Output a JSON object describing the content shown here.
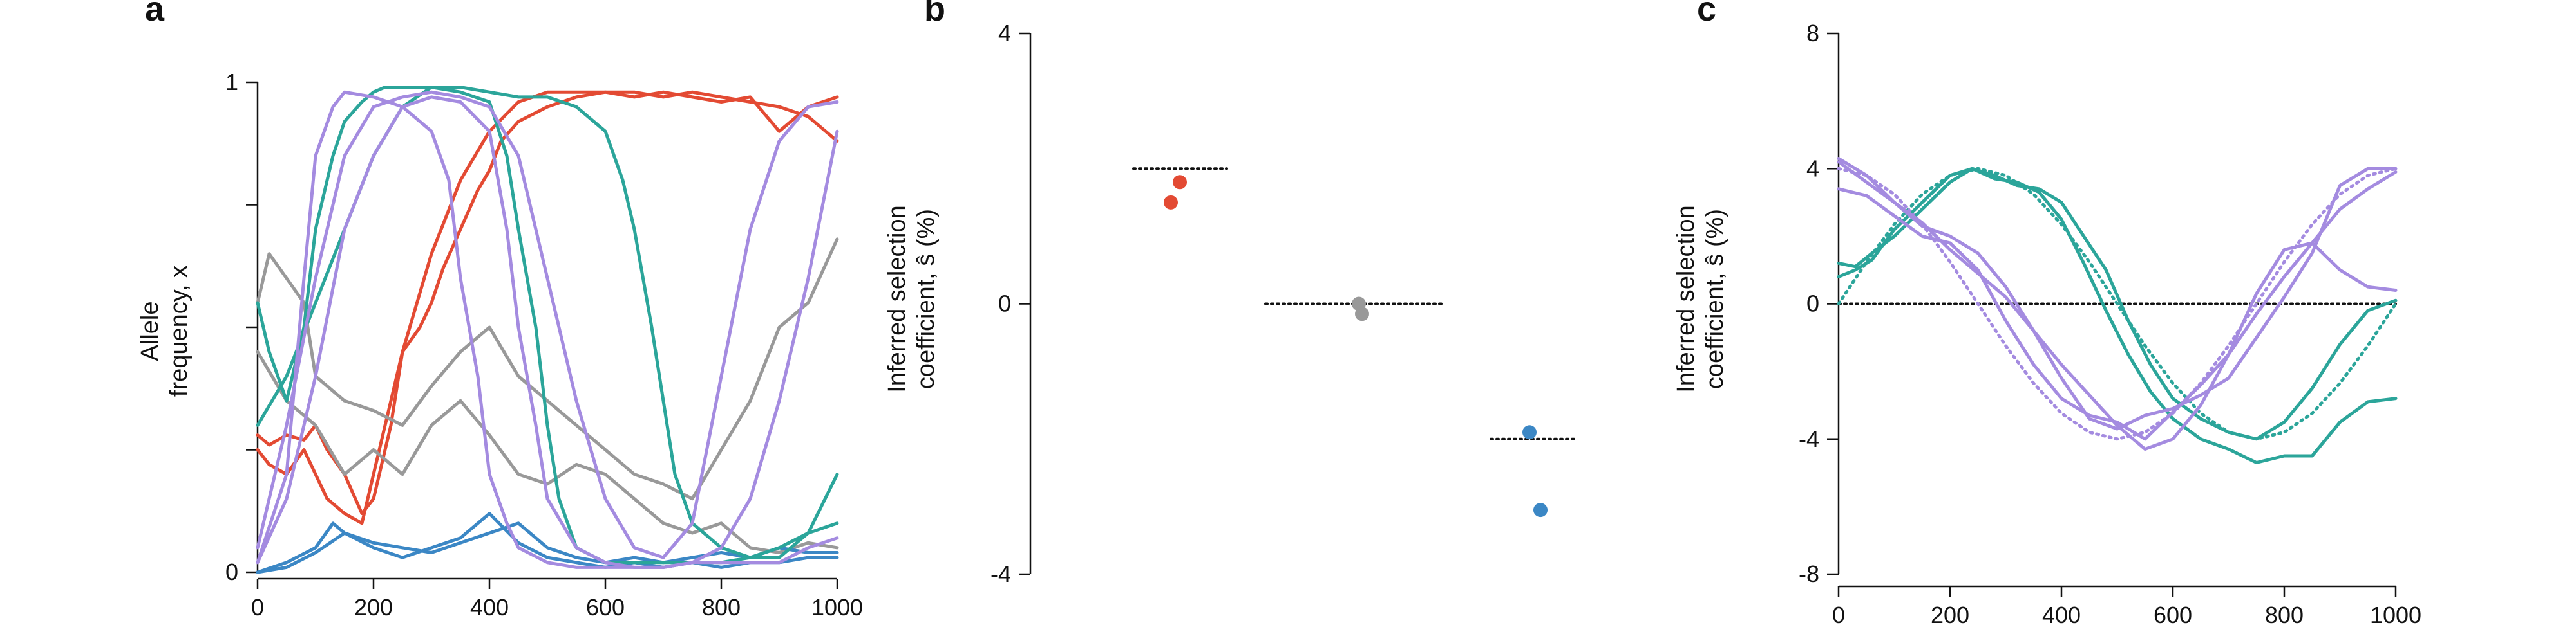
{
  "colors": {
    "red": "#e34a33",
    "gray": "#999999",
    "blue": "#3b87c5",
    "teal": "#2ba59a",
    "purple": "#a48be0",
    "axis": "#111111"
  },
  "chart_data": [
    {
      "panel": "a",
      "type": "line",
      "ylabel_lines": [
        "Allele",
        "frequency, x"
      ],
      "xlim": [
        0,
        1000
      ],
      "ylim": [
        0,
        1
      ],
      "xticks": [
        0,
        200,
        400,
        600,
        800,
        1000
      ],
      "yticks": [
        0,
        0.25,
        0.5,
        0.75,
        1
      ],
      "ytick_labels": [
        "0",
        "",
        "",
        "",
        "1"
      ],
      "series": [
        {
          "color": "red",
          "x": [
            0,
            20,
            50,
            80,
            100,
            120,
            150,
            180,
            200,
            230,
            250,
            280,
            300,
            320,
            350,
            380,
            400,
            420,
            450,
            500,
            550,
            600,
            650,
            700,
            750,
            800,
            850,
            900,
            950,
            1000
          ],
          "y": [
            0.28,
            0.26,
            0.28,
            0.27,
            0.3,
            0.25,
            0.2,
            0.12,
            0.15,
            0.3,
            0.45,
            0.5,
            0.55,
            0.62,
            0.7,
            0.78,
            0.82,
            0.88,
            0.92,
            0.95,
            0.97,
            0.98,
            0.98,
            0.97,
            0.98,
            0.97,
            0.96,
            0.95,
            0.93,
            0.88
          ]
        },
        {
          "color": "red",
          "x": [
            0,
            20,
            50,
            80,
            100,
            120,
            150,
            180,
            200,
            250,
            300,
            350,
            400,
            450,
            500,
            550,
            600,
            650,
            700,
            750,
            800,
            850,
            900,
            950,
            1000
          ],
          "y": [
            0.25,
            0.22,
            0.2,
            0.25,
            0.2,
            0.15,
            0.12,
            0.1,
            0.2,
            0.45,
            0.65,
            0.8,
            0.9,
            0.96,
            0.98,
            0.98,
            0.98,
            0.97,
            0.98,
            0.97,
            0.96,
            0.97,
            0.9,
            0.95,
            0.97
          ]
        },
        {
          "color": "gray",
          "x": [
            0,
            20,
            50,
            80,
            100,
            150,
            200,
            250,
            300,
            350,
            400,
            450,
            500,
            550,
            600,
            650,
            700,
            750,
            800,
            850,
            900,
            950,
            1000
          ],
          "y": [
            0.55,
            0.65,
            0.6,
            0.55,
            0.4,
            0.35,
            0.33,
            0.3,
            0.38,
            0.45,
            0.5,
            0.4,
            0.35,
            0.3,
            0.25,
            0.2,
            0.18,
            0.15,
            0.25,
            0.35,
            0.5,
            0.55,
            0.68
          ]
        },
        {
          "color": "gray",
          "x": [
            0,
            50,
            100,
            150,
            200,
            250,
            300,
            350,
            400,
            450,
            500,
            550,
            600,
            650,
            700,
            750,
            800,
            850,
            900,
            950,
            1000
          ],
          "y": [
            0.45,
            0.35,
            0.3,
            0.2,
            0.25,
            0.2,
            0.3,
            0.35,
            0.28,
            0.2,
            0.18,
            0.22,
            0.2,
            0.15,
            0.1,
            0.08,
            0.1,
            0.05,
            0.04,
            0.06,
            0.05
          ]
        },
        {
          "color": "blue",
          "x": [
            0,
            50,
            100,
            130,
            150,
            200,
            250,
            300,
            350,
            400,
            450,
            500,
            550,
            600,
            650,
            700,
            750,
            800,
            850,
            900,
            950,
            1000
          ],
          "y": [
            0,
            0.02,
            0.05,
            0.1,
            0.08,
            0.06,
            0.05,
            0.04,
            0.06,
            0.08,
            0.1,
            0.05,
            0.03,
            0.02,
            0.03,
            0.02,
            0.03,
            0.04,
            0.03,
            0.05,
            0.04,
            0.04
          ]
        },
        {
          "color": "blue",
          "x": [
            0,
            50,
            100,
            150,
            200,
            250,
            300,
            350,
            400,
            450,
            500,
            550,
            600,
            650,
            700,
            750,
            800,
            850,
            900,
            950,
            1000
          ],
          "y": [
            0,
            0.01,
            0.04,
            0.08,
            0.05,
            0.03,
            0.05,
            0.07,
            0.12,
            0.06,
            0.03,
            0.02,
            0.01,
            0.02,
            0.01,
            0.02,
            0.01,
            0.02,
            0.02,
            0.03,
            0.03
          ]
        },
        {
          "color": "teal",
          "x": [
            0,
            20,
            50,
            80,
            100,
            130,
            150,
            180,
            200,
            220,
            250,
            300,
            350,
            400,
            430,
            450,
            480,
            500,
            520,
            550,
            600,
            650,
            700,
            750,
            800,
            850,
            900,
            950,
            1000
          ],
          "y": [
            0.55,
            0.45,
            0.35,
            0.5,
            0.7,
            0.85,
            0.92,
            0.96,
            0.98,
            0.99,
            0.99,
            0.99,
            0.98,
            0.96,
            0.85,
            0.7,
            0.5,
            0.3,
            0.15,
            0.05,
            0.02,
            0.02,
            0.02,
            0.02,
            0.02,
            0.03,
            0.05,
            0.08,
            0.1
          ]
        },
        {
          "color": "teal",
          "x": [
            0,
            50,
            100,
            150,
            200,
            250,
            300,
            350,
            400,
            450,
            500,
            550,
            600,
            630,
            650,
            680,
            700,
            720,
            750,
            800,
            850,
            900,
            950,
            1000
          ],
          "y": [
            0.3,
            0.4,
            0.55,
            0.7,
            0.85,
            0.95,
            0.99,
            0.99,
            0.98,
            0.97,
            0.97,
            0.95,
            0.9,
            0.8,
            0.7,
            0.5,
            0.35,
            0.2,
            0.1,
            0.05,
            0.03,
            0.03,
            0.08,
            0.2
          ]
        },
        {
          "color": "purple",
          "x": [
            0,
            50,
            80,
            100,
            130,
            150,
            200,
            250,
            300,
            330,
            350,
            380,
            400,
            430,
            450,
            500,
            550,
            600,
            650,
            700,
            750,
            800,
            850,
            900,
            950,
            1000
          ],
          "y": [
            0.02,
            0.2,
            0.6,
            0.85,
            0.95,
            0.98,
            0.97,
            0.95,
            0.9,
            0.8,
            0.6,
            0.4,
            0.2,
            0.1,
            0.05,
            0.02,
            0.01,
            0.01,
            0.01,
            0.01,
            0.02,
            0.02,
            0.02,
            0.02,
            0.05,
            0.07
          ]
        },
        {
          "color": "purple",
          "x": [
            0,
            50,
            100,
            150,
            200,
            250,
            300,
            350,
            400,
            430,
            450,
            480,
            500,
            550,
            600,
            650,
            700,
            750,
            800,
            850,
            900,
            950,
            980,
            1000
          ],
          "y": [
            0.02,
            0.15,
            0.4,
            0.7,
            0.85,
            0.95,
            0.97,
            0.96,
            0.9,
            0.7,
            0.5,
            0.3,
            0.15,
            0.05,
            0.02,
            0.01,
            0.01,
            0.02,
            0.05,
            0.15,
            0.35,
            0.6,
            0.78,
            0.9
          ]
        },
        {
          "color": "purple",
          "x": [
            0,
            50,
            100,
            150,
            200,
            250,
            300,
            350,
            400,
            450,
            500,
            550,
            600,
            650,
            700,
            750,
            800,
            850,
            900,
            950,
            1000
          ],
          "y": [
            0.05,
            0.3,
            0.6,
            0.85,
            0.95,
            0.97,
            0.98,
            0.97,
            0.95,
            0.85,
            0.6,
            0.35,
            0.15,
            0.05,
            0.03,
            0.1,
            0.4,
            0.7,
            0.88,
            0.95,
            0.96
          ]
        }
      ]
    },
    {
      "panel": "b",
      "type": "scatter",
      "ylabel_lines": [
        "Inferred selection",
        "coefficient, ŝ (%)"
      ],
      "ylim": [
        -4,
        4
      ],
      "yticks": [
        -4,
        0,
        4
      ],
      "ytick_labels": [
        "-4",
        "0",
        "4"
      ],
      "groups": [
        {
          "color": "red",
          "true_s": 2,
          "inferred": [
            1.5,
            1.8
          ]
        },
        {
          "color": "gray",
          "true_s": 0,
          "inferred": [
            0.0,
            -0.15
          ]
        },
        {
          "color": "blue",
          "true_s": -2,
          "inferred": [
            -1.9,
            -3.05
          ]
        }
      ]
    },
    {
      "panel": "c",
      "type": "line",
      "ylabel_lines": [
        "Inferred selection",
        "coefficient, ŝ (%)"
      ],
      "xlim": [
        0,
        1000
      ],
      "ylim": [
        -8,
        8
      ],
      "xticks": [
        0,
        200,
        400,
        600,
        800,
        1000
      ],
      "yticks": [
        -8,
        -4,
        0,
        4,
        8
      ],
      "ytick_labels": [
        "-8",
        "-4",
        "0",
        "4",
        "8"
      ],
      "zero_line": true,
      "true_curves": [
        {
          "color": "teal",
          "x": [
            0,
            50,
            100,
            150,
            200,
            250,
            300,
            350,
            400,
            450,
            500,
            550,
            600,
            650,
            700,
            750,
            800,
            850,
            900,
            950,
            1000
          ],
          "y": [
            0,
            1.24,
            2.35,
            3.24,
            3.8,
            4.0,
            3.8,
            3.24,
            2.35,
            1.24,
            0,
            -1.24,
            -2.35,
            -3.24,
            -3.8,
            -4.0,
            -3.8,
            -3.24,
            -2.35,
            -1.24,
            0
          ]
        },
        {
          "color": "purple",
          "x": [
            0,
            50,
            100,
            150,
            200,
            250,
            300,
            350,
            400,
            450,
            500,
            550,
            600,
            650,
            700,
            750,
            800,
            850,
            900,
            950,
            1000
          ],
          "y": [
            4.0,
            3.8,
            3.24,
            2.35,
            1.24,
            0,
            -1.24,
            -2.35,
            -3.24,
            -3.8,
            -4.0,
            -3.8,
            -3.24,
            -2.35,
            -1.24,
            0,
            1.24,
            2.35,
            3.24,
            3.8,
            4.0
          ]
        }
      ],
      "series": [
        {
          "color": "teal",
          "x": [
            0,
            30,
            60,
            100,
            150,
            200,
            240,
            280,
            320,
            360,
            400,
            440,
            480,
            520,
            560,
            600,
            650,
            700,
            750,
            800,
            850,
            900,
            950,
            1000
          ],
          "y": [
            1.2,
            1.1,
            1.5,
            2.0,
            2.8,
            3.6,
            4.0,
            3.8,
            3.5,
            3.4,
            3.0,
            2.0,
            1.0,
            -0.5,
            -1.8,
            -2.8,
            -3.4,
            -3.8,
            -4.0,
            -3.5,
            -2.5,
            -1.2,
            -0.2,
            0.1
          ]
        },
        {
          "color": "teal",
          "x": [
            0,
            30,
            60,
            100,
            150,
            200,
            240,
            280,
            320,
            360,
            400,
            440,
            480,
            520,
            560,
            600,
            650,
            700,
            750,
            800,
            850,
            900,
            950,
            1000
          ],
          "y": [
            0.8,
            1.0,
            1.3,
            2.2,
            3.0,
            3.8,
            4.0,
            3.7,
            3.6,
            3.3,
            2.5,
            1.2,
            -0.2,
            -1.5,
            -2.6,
            -3.4,
            -4.0,
            -4.3,
            -4.7,
            -4.5,
            -4.5,
            -3.5,
            -2.9,
            -2.8
          ]
        },
        {
          "color": "purple",
          "x": [
            0,
            50,
            100,
            150,
            200,
            250,
            300,
            350,
            400,
            450,
            500,
            550,
            600,
            650,
            700,
            750,
            800,
            850,
            900,
            950,
            1000
          ],
          "y": [
            4.3,
            3.8,
            3.0,
            2.3,
            2.0,
            1.5,
            0.5,
            -0.8,
            -2.2,
            -3.4,
            -3.7,
            -3.3,
            -3.1,
            -2.7,
            -2.2,
            -1.0,
            0.2,
            1.5,
            3.5,
            4.0,
            4.0
          ]
        },
        {
          "color": "purple",
          "x": [
            0,
            50,
            100,
            150,
            200,
            250,
            300,
            350,
            400,
            450,
            500,
            550,
            600,
            650,
            700,
            750,
            800,
            850,
            900,
            950,
            1000
          ],
          "y": [
            3.4,
            3.2,
            2.6,
            2.0,
            1.8,
            1.0,
            -0.5,
            -1.8,
            -2.8,
            -3.3,
            -3.5,
            -4.0,
            -3.2,
            -2.4,
            -1.5,
            -0.3,
            0.8,
            1.8,
            2.8,
            3.4,
            3.9
          ]
        },
        {
          "color": "purple",
          "x": [
            0,
            50,
            100,
            150,
            200,
            250,
            300,
            350,
            400,
            450,
            500,
            550,
            600,
            650,
            700,
            750,
            800,
            850,
            900,
            950,
            1000
          ],
          "y": [
            4.2,
            3.6,
            3.0,
            2.4,
            1.6,
            0.9,
            0.2,
            -0.8,
            -1.8,
            -2.7,
            -3.6,
            -4.3,
            -4.0,
            -3.0,
            -1.5,
            0.3,
            1.6,
            1.8,
            1.0,
            0.5,
            0.4
          ]
        }
      ]
    }
  ],
  "panel_labels": [
    "a",
    "b",
    "c"
  ]
}
